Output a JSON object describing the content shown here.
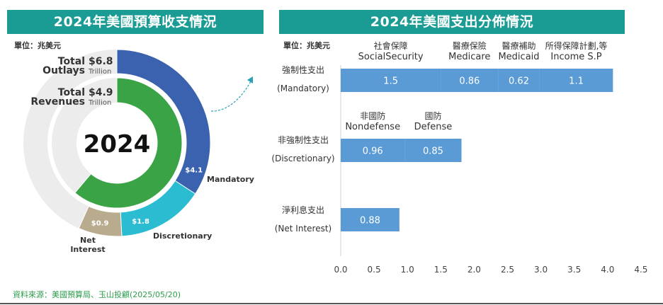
{
  "left_panel": {
    "title": "2024年美國預算收支情況",
    "unit": "單位：兆美元"
  },
  "right_panel": {
    "title": "2024年美國支出分佈情況",
    "unit": "單位：兆美元"
  },
  "source": "資料來源：美國預算局、玉山投顧(2025/05/20)",
  "chart_data": [
    {
      "type": "pie",
      "center_label": "2024",
      "outlays": {
        "label_line1": "Total",
        "label_line2": "Outlays",
        "value": "$6.8",
        "unit": "Trillion"
      },
      "revenues": {
        "label_line1": "Total",
        "label_line2": "Revenues",
        "value": "$4.9",
        "unit": "Trillion"
      },
      "outer_ring": {
        "total": 6.8,
        "slices": [
          {
            "name": "Mandatory",
            "value": 4.1,
            "label": "$4.1",
            "color": "#3b62ae"
          },
          {
            "name": "Discretionary",
            "value": 1.8,
            "label": "$1.8",
            "color": "#2bbcd1"
          },
          {
            "name": "Net Interest",
            "value": 0.9,
            "label": "$0.9",
            "color": "#b9ab8e"
          }
        ],
        "track_color": "#ececec"
      },
      "inner_ring": {
        "value": 4.9,
        "max": 6.8,
        "color": "#3aa346",
        "track_color": "#ececec"
      }
    },
    {
      "type": "bar",
      "orientation": "horizontal",
      "stacked": true,
      "xlim": [
        0,
        4.5
      ],
      "xticks": [
        "0.0",
        "0.5",
        "1.0",
        "1.5",
        "2.0",
        "2.5",
        "3.0",
        "3.5",
        "4.0",
        "4.5"
      ],
      "bar_color": "#5b9bd5",
      "rows": [
        {
          "label_zh": "強制性支出",
          "label_en": "(Mandatory)",
          "segments": [
            {
              "zh": "社會保障",
              "en": "SocialSecurity",
              "value": 1.5,
              "label": "1.5"
            },
            {
              "zh": "醫療保險",
              "en": "Medicare",
              "value": 0.86,
              "label": "0.86"
            },
            {
              "zh": "醫療補助",
              "en": "Medicaid",
              "value": 0.62,
              "label": "0.62"
            },
            {
              "zh": "所得保障計劃,等",
              "en": "Income S.P",
              "value": 1.1,
              "label": "1.1"
            }
          ]
        },
        {
          "label_zh": "非強制性支出",
          "label_en": "(Discretionary)",
          "segments": [
            {
              "zh": "非國防",
              "en": "Nondefense",
              "value": 0.96,
              "label": "0.96"
            },
            {
              "zh": "國防",
              "en": "Defense",
              "value": 0.85,
              "label": "0.85"
            }
          ]
        },
        {
          "label_zh": "淨利息支出",
          "label_en": "(Net Interest)",
          "segments": [
            {
              "zh": "",
              "en": "",
              "value": 0.88,
              "label": "0.88"
            }
          ]
        }
      ]
    }
  ]
}
